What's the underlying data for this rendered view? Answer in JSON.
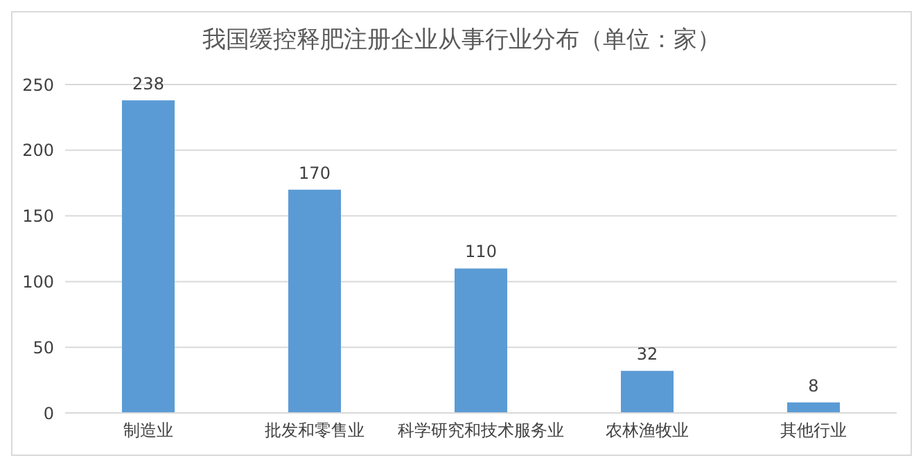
{
  "chart_data": {
    "type": "bar",
    "title": "我国缓控释肥注册企业从事行业分布（单位：家）",
    "categories": [
      "制造业",
      "批发和零售业",
      "科学研究和技术服务业",
      "农林渔牧业",
      "其他行业"
    ],
    "values": [
      238,
      170,
      110,
      32,
      8
    ],
    "color": "#5b9bd5",
    "ylim": [
      0,
      250
    ],
    "yticks": [
      0,
      50,
      100,
      150,
      200,
      250
    ],
    "grid": "y",
    "data_labels": true
  }
}
